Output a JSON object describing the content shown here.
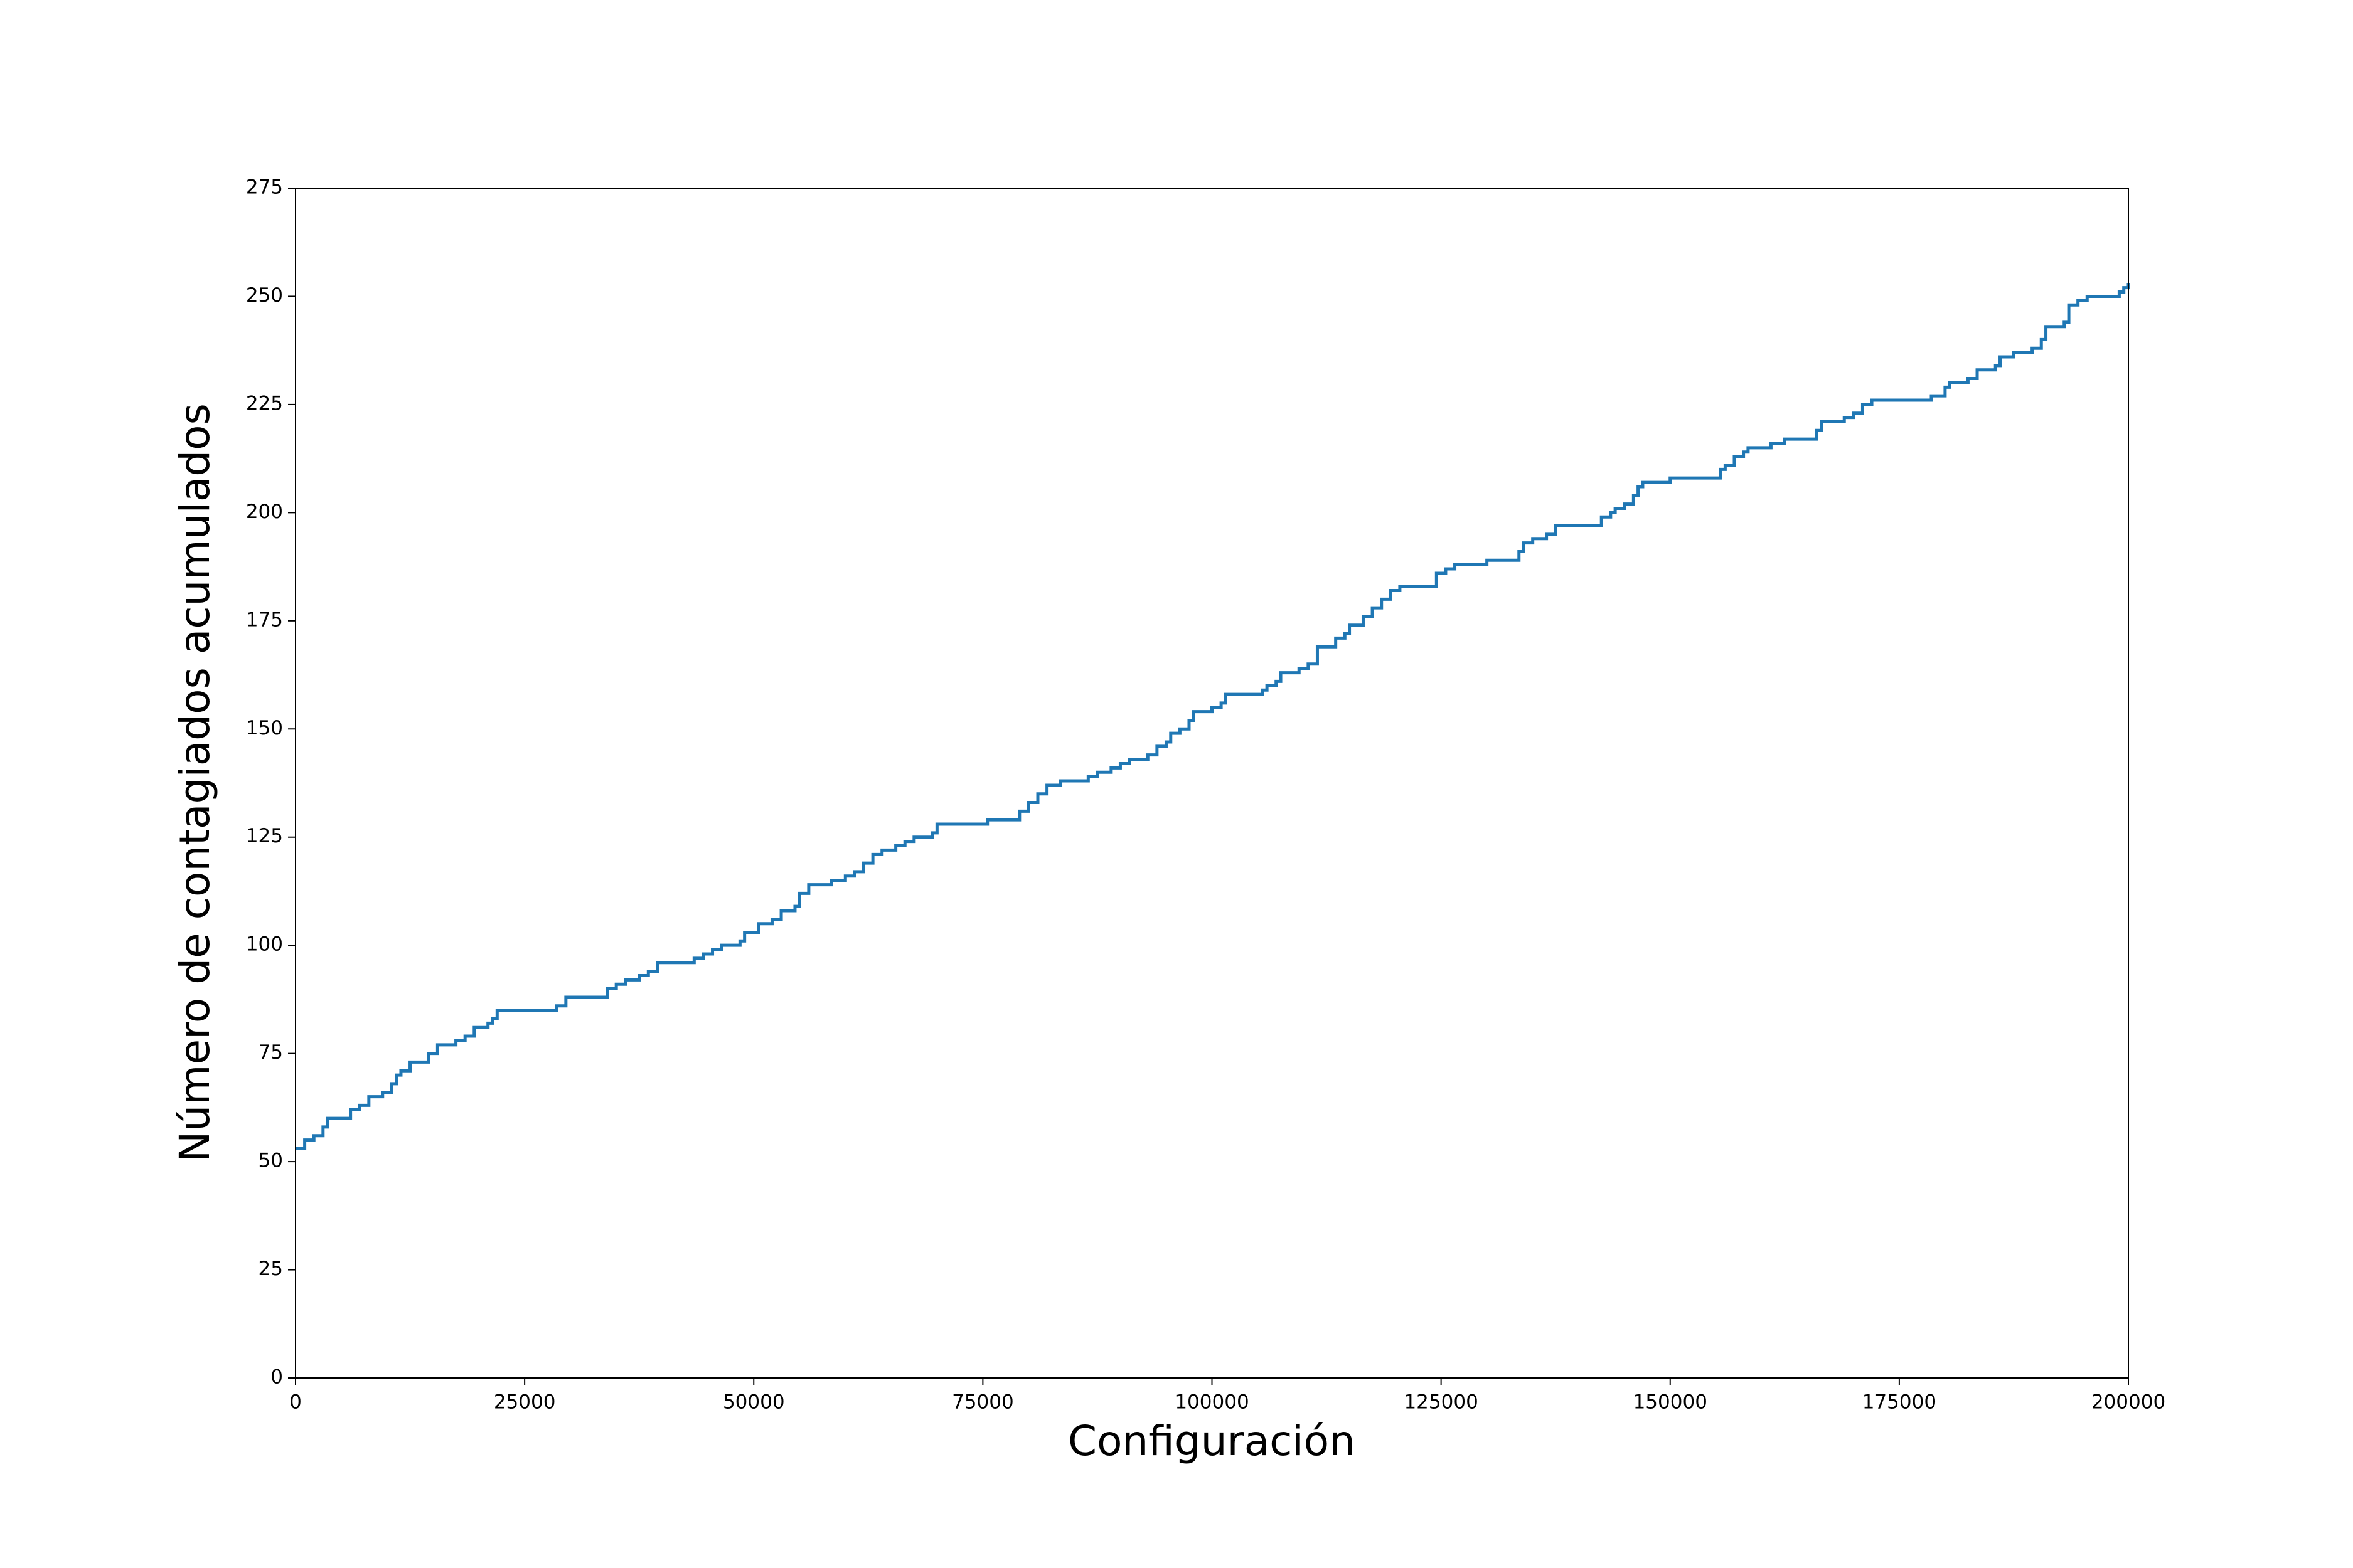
{
  "chart_data": {
    "type": "line",
    "drawstyle": "steps-post",
    "xlabel": "Configuración",
    "ylabel": "Número de contagiados acumulados",
    "xlim": [
      0,
      200000
    ],
    "ylim": [
      0,
      275
    ],
    "xticks": [
      0,
      25000,
      50000,
      75000,
      100000,
      125000,
      150000,
      175000,
      200000
    ],
    "yticks": [
      0,
      25,
      50,
      75,
      100,
      125,
      150,
      175,
      200,
      225,
      250,
      275
    ],
    "grid": false,
    "series": [
      {
        "color": "#1f77b4",
        "x": [
          0,
          1000,
          2000,
          3000,
          3500,
          5500,
          6000,
          7000,
          8000,
          9500,
          10500,
          11000,
          11500,
          12500,
          14500,
          15500,
          17500,
          18500,
          19500,
          21000,
          21500,
          22000,
          28500,
          29500,
          34000,
          35000,
          36000,
          37500,
          38500,
          39500,
          43500,
          44500,
          45500,
          46500,
          48500,
          49000,
          50500,
          52000,
          53000,
          54500,
          55000,
          56000,
          58500,
          60000,
          61000,
          62000,
          63000,
          64000,
          65500,
          66500,
          67500,
          69500,
          70000,
          75500,
          79000,
          80000,
          81000,
          82000,
          83500,
          86500,
          87500,
          89000,
          90000,
          91000,
          93000,
          94000,
          95000,
          95500,
          96500,
          97500,
          98000,
          100000,
          101000,
          101500,
          105500,
          106000,
          107000,
          107500,
          109500,
          110500,
          111500,
          113500,
          114500,
          115000,
          116500,
          117500,
          118500,
          119500,
          120500,
          124500,
          125500,
          126500,
          130000,
          133500,
          134000,
          135000,
          136500,
          137500,
          142500,
          143500,
          144000,
          145000,
          146000,
          146500,
          147000,
          150000,
          155500,
          156000,
          157000,
          158000,
          158500,
          161000,
          162500,
          166000,
          166500,
          169000,
          170000,
          171000,
          172000,
          178500,
          180000,
          180500,
          182500,
          183500,
          185500,
          186000,
          187500,
          189500,
          190500,
          191000,
          193000,
          193500,
          194500,
          195500,
          199000,
          199500,
          200000
        ],
        "values": [
          53,
          55,
          56,
          58,
          60,
          60,
          62,
          63,
          65,
          66,
          68,
          70,
          71,
          73,
          75,
          77,
          78,
          79,
          81,
          82,
          83,
          85,
          86,
          88,
          90,
          91,
          92,
          93,
          94,
          96,
          97,
          98,
          99,
          100,
          101,
          103,
          105,
          106,
          108,
          109,
          112,
          114,
          115,
          116,
          117,
          119,
          121,
          122,
          123,
          124,
          125,
          126,
          128,
          129,
          131,
          133,
          135,
          137,
          138,
          139,
          140,
          141,
          142,
          143,
          144,
          146,
          147,
          149,
          150,
          152,
          154,
          155,
          156,
          158,
          159,
          160,
          161,
          163,
          164,
          165,
          169,
          171,
          172,
          174,
          176,
          178,
          180,
          182,
          183,
          186,
          187,
          188,
          189,
          191,
          193,
          194,
          195,
          197,
          199,
          200,
          201,
          202,
          204,
          206,
          207,
          208,
          210,
          211,
          213,
          214,
          215,
          216,
          217,
          219,
          221,
          222,
          223,
          225,
          226,
          227,
          229,
          230,
          231,
          233,
          234,
          236,
          237,
          238,
          240,
          243,
          244,
          248,
          249,
          250,
          251,
          252,
          253
        ]
      }
    ]
  }
}
